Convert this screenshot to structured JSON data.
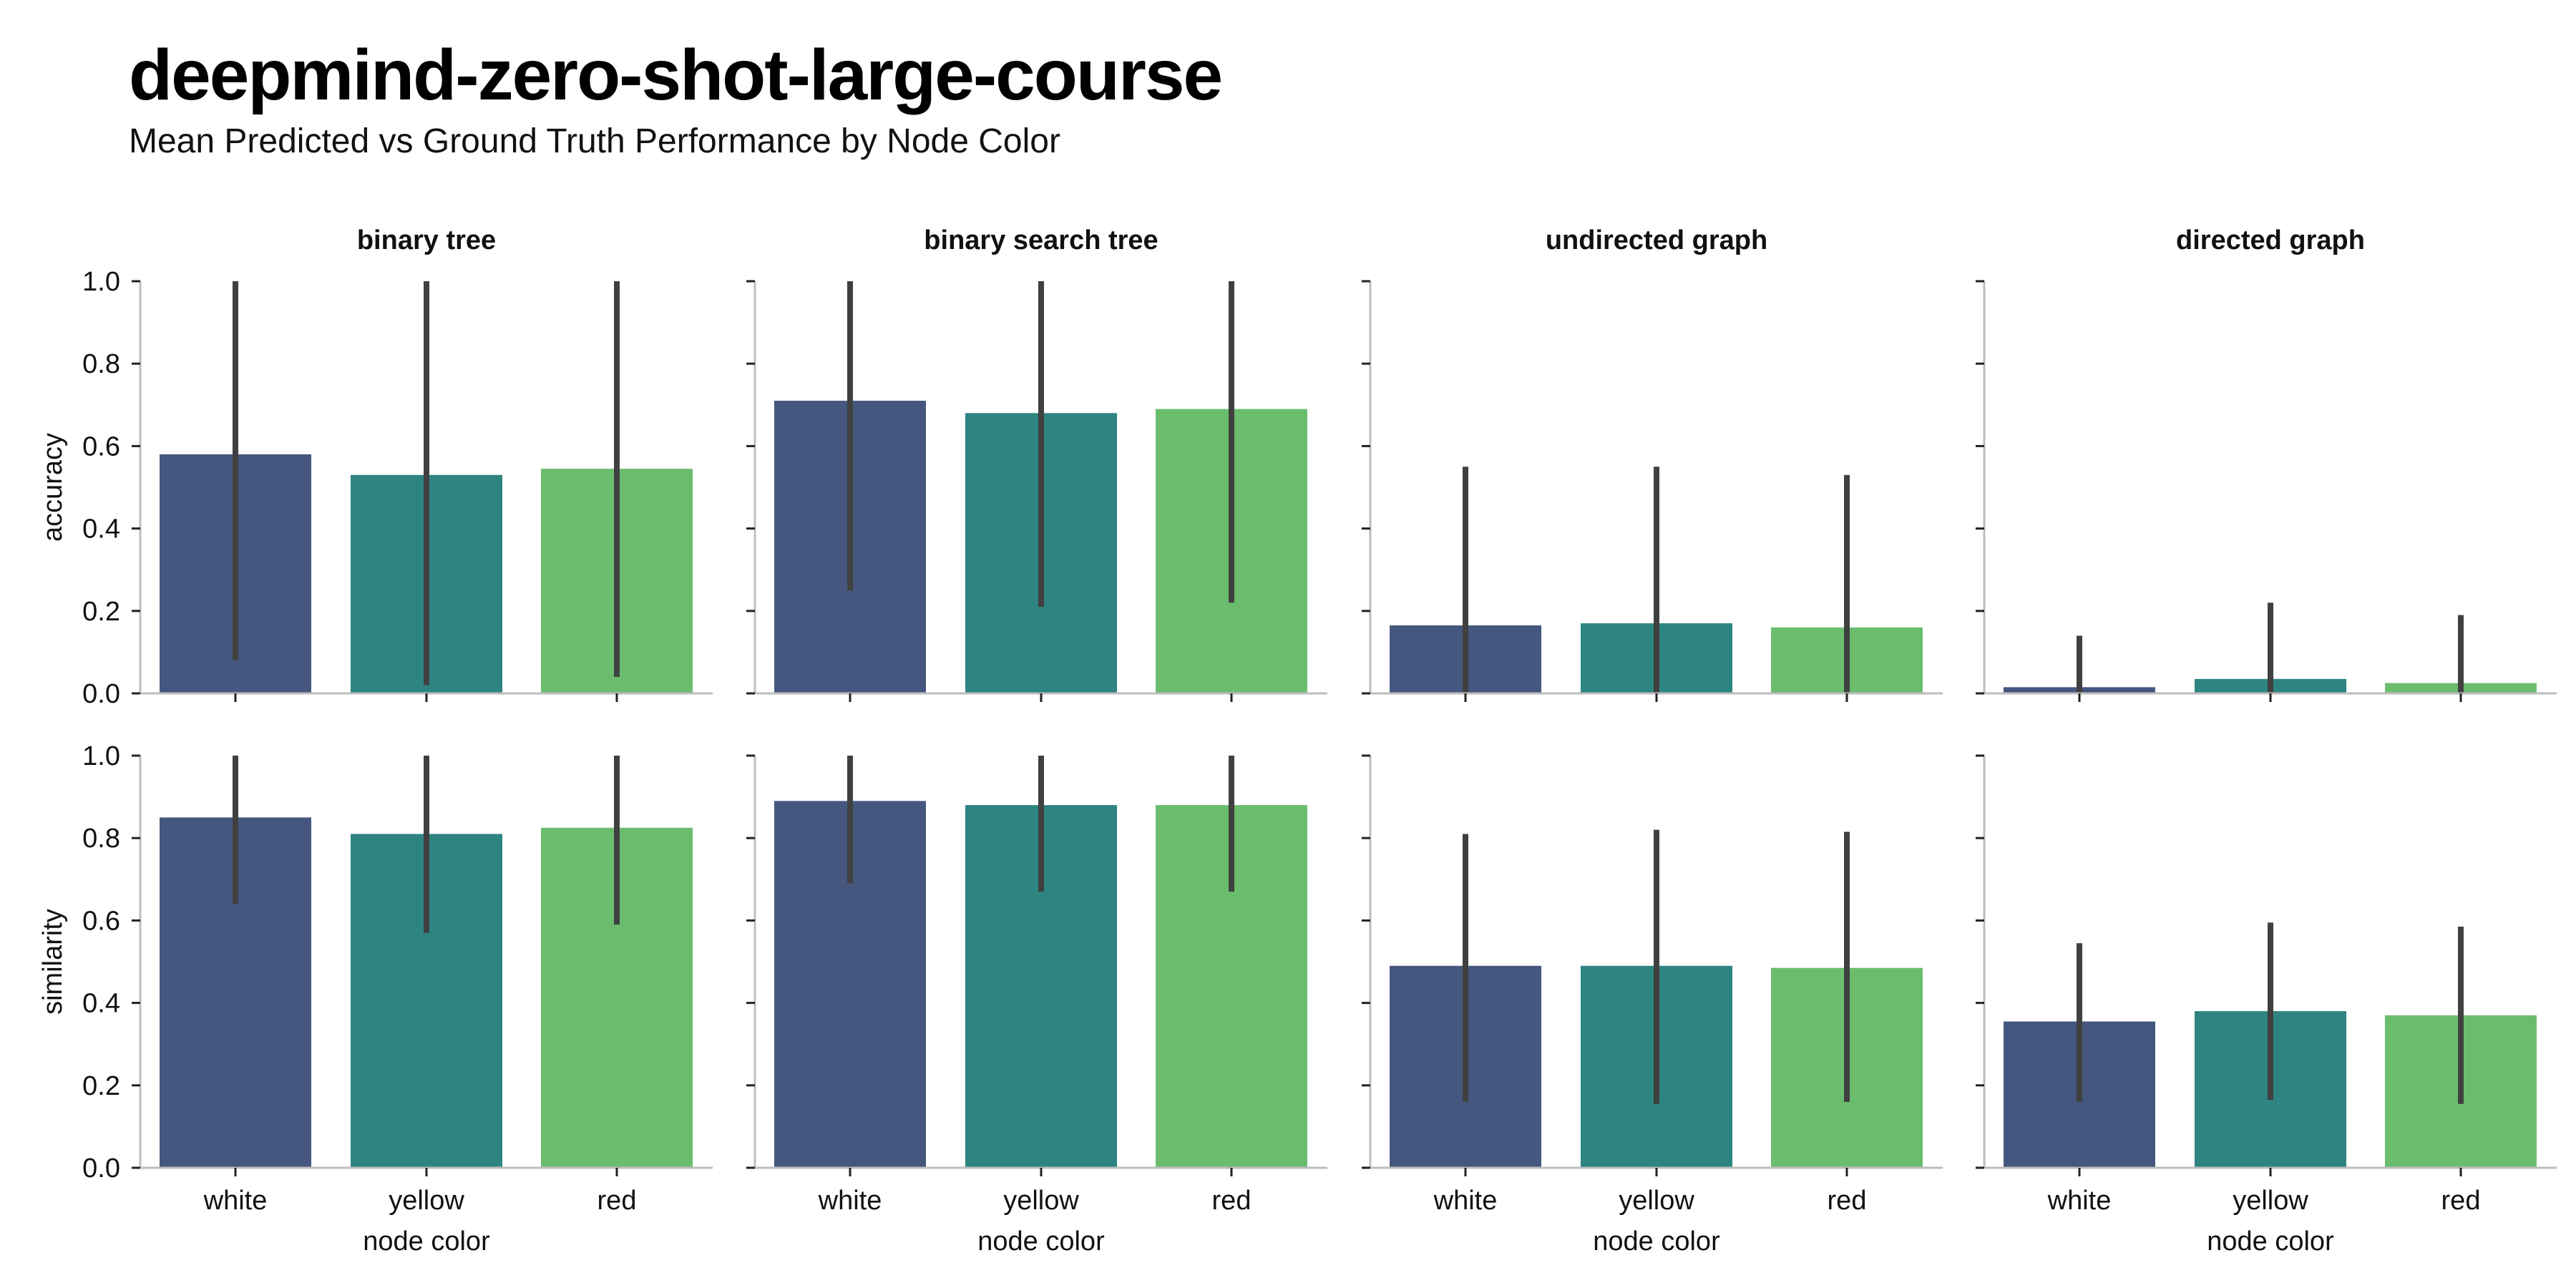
{
  "header": {
    "title": "deepmind-zero-shot-large-course",
    "subtitle": "Mean Predicted vs Ground Truth Performance by Node Color"
  },
  "colors": {
    "white": "#45577f",
    "yellow": "#2e8480",
    "red": "#6bbd6e",
    "error_bar": "#404040",
    "axis": "#bdbdbd"
  },
  "chart_data": {
    "type": "bar",
    "xlabel": "node color",
    "categories": [
      "white",
      "yellow",
      "red"
    ],
    "columns": [
      "binary tree",
      "binary search tree",
      "undirected graph",
      "directed graph"
    ],
    "rows": [
      "accuracy",
      "similarity"
    ],
    "ylim": [
      0,
      1
    ],
    "yticks": [
      "0.0",
      "0.2",
      "0.4",
      "0.6",
      "0.8",
      "1.0"
    ],
    "grid": false,
    "panels": [
      {
        "column": "binary tree",
        "metric": "accuracy",
        "values": [
          0.58,
          0.53,
          0.545
        ],
        "error_low": [
          0.08,
          0.02,
          0.04
        ],
        "error_high": [
          1.0,
          1.0,
          1.0
        ]
      },
      {
        "column": "binary search tree",
        "metric": "accuracy",
        "values": [
          0.71,
          0.68,
          0.69
        ],
        "error_low": [
          0.25,
          0.21,
          0.22
        ],
        "error_high": [
          1.0,
          1.0,
          1.0
        ]
      },
      {
        "column": "undirected graph",
        "metric": "accuracy",
        "values": [
          0.165,
          0.17,
          0.16
        ],
        "error_low": [
          0.0,
          0.0,
          0.0
        ],
        "error_high": [
          0.55,
          0.55,
          0.53
        ]
      },
      {
        "column": "directed graph",
        "metric": "accuracy",
        "values": [
          0.015,
          0.035,
          0.025
        ],
        "error_low": [
          0.0,
          0.0,
          0.0
        ],
        "error_high": [
          0.14,
          0.22,
          0.19
        ]
      },
      {
        "column": "binary tree",
        "metric": "similarity",
        "values": [
          0.85,
          0.81,
          0.825
        ],
        "error_low": [
          0.64,
          0.57,
          0.59
        ],
        "error_high": [
          1.0,
          1.0,
          1.0
        ]
      },
      {
        "column": "binary search tree",
        "metric": "similarity",
        "values": [
          0.89,
          0.88,
          0.88
        ],
        "error_low": [
          0.69,
          0.67,
          0.67
        ],
        "error_high": [
          1.0,
          1.0,
          1.0
        ]
      },
      {
        "column": "undirected graph",
        "metric": "similarity",
        "values": [
          0.49,
          0.49,
          0.485
        ],
        "error_low": [
          0.16,
          0.155,
          0.16
        ],
        "error_high": [
          0.81,
          0.82,
          0.815
        ]
      },
      {
        "column": "directed graph",
        "metric": "similarity",
        "values": [
          0.355,
          0.38,
          0.37
        ],
        "error_low": [
          0.16,
          0.165,
          0.155
        ],
        "error_high": [
          0.545,
          0.595,
          0.585
        ]
      }
    ]
  }
}
